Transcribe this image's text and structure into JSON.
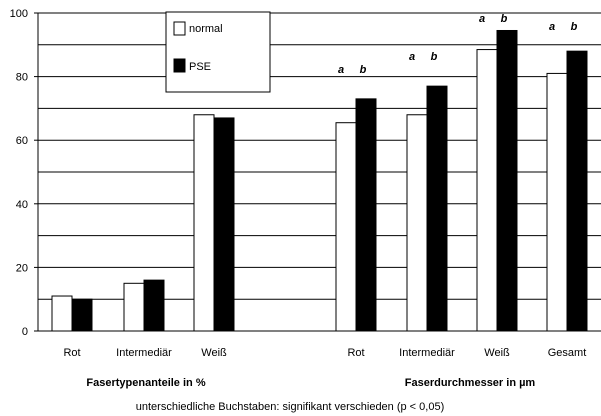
{
  "chart_data": {
    "type": "bar",
    "categories": [
      "Rot",
      "Intermediär",
      "Weiß",
      "Rot",
      "Intermediär",
      "Weiß",
      "Gesamt"
    ],
    "groups": [
      {
        "label": "Fasertypenanteile in %",
        "categories": [
          "Rot",
          "Intermediär",
          "Weiß"
        ]
      },
      {
        "label": "Faserdurchmesser in  µm",
        "categories": [
          "Rot",
          "Intermediär",
          "Weiß",
          "Gesamt"
        ]
      }
    ],
    "series": [
      {
        "name": "normal",
        "color": "#ffffff",
        "values": [
          11,
          15,
          68,
          65.5,
          68,
          88.5,
          81
        ]
      },
      {
        "name": "PSE",
        "color": "#000000",
        "values": [
          10,
          16,
          67,
          73,
          77,
          94.5,
          88
        ]
      }
    ],
    "significance_letters": [
      {
        "category_index": 3,
        "letters": [
          "a",
          "b"
        ]
      },
      {
        "category_index": 4,
        "letters": [
          "a",
          "b"
        ]
      },
      {
        "category_index": 5,
        "letters": [
          "a",
          "b"
        ]
      },
      {
        "category_index": 6,
        "letters": [
          "a",
          "b"
        ]
      }
    ],
    "ylim": [
      0,
      100
    ],
    "yticks": [
      0,
      20,
      40,
      60,
      80,
      100
    ],
    "grid": true,
    "legend_position": "top-center",
    "footnote": "unterschiedliche Buchstaben: signifikant verschieden (p < 0,05)"
  }
}
